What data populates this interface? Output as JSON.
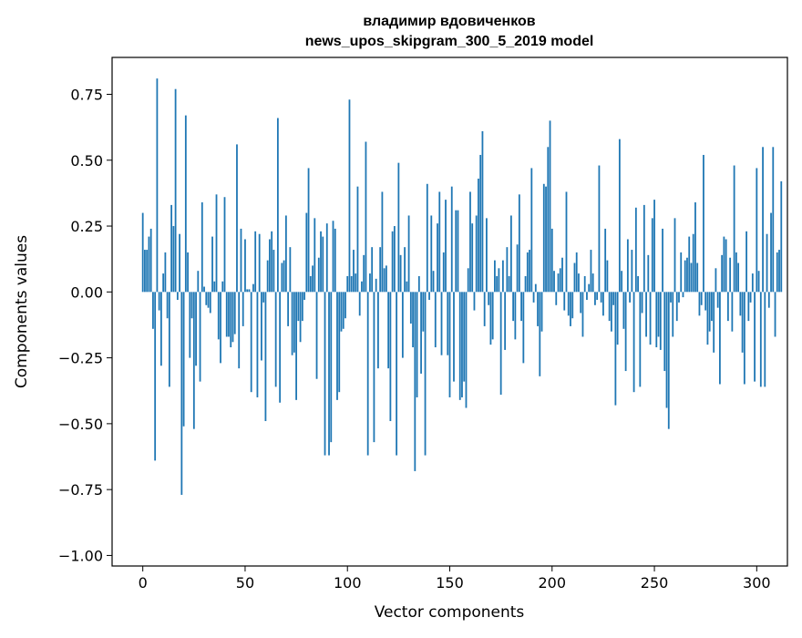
{
  "chart_data": {
    "type": "bar",
    "title": "владимир вдовиченков",
    "subtitle": "news_upos_skipgram_300_5_2019 model",
    "xlabel": "Vector components",
    "ylabel": "Components values",
    "xlim": [
      -15,
      315
    ],
    "ylim": [
      -1.04,
      0.89
    ],
    "xticks": [
      0,
      50,
      100,
      150,
      200,
      250,
      300
    ],
    "yticks": [
      -1.0,
      -0.75,
      -0.5,
      -0.25,
      0.0,
      0.25,
      0.5,
      0.75
    ],
    "ytick_labels": [
      "−1.00",
      "−0.75",
      "−0.50",
      "−0.25",
      "0.00",
      "0.25",
      "0.50",
      "0.75"
    ],
    "bar_color": "#1f77b4",
    "grid": false,
    "values": [
      0.3,
      0.16,
      0.16,
      0.21,
      0.24,
      -0.14,
      -0.64,
      0.81,
      -0.07,
      -0.28,
      0.07,
      0.15,
      -0.1,
      -0.36,
      0.33,
      0.25,
      0.77,
      -0.03,
      0.22,
      -0.77,
      -0.51,
      0.67,
      0.15,
      -0.25,
      -0.1,
      -0.52,
      -0.28,
      0.08,
      -0.34,
      0.34,
      0.02,
      -0.05,
      -0.06,
      -0.08,
      0.21,
      0.04,
      0.37,
      -0.18,
      -0.27,
      0.04,
      0.36,
      -0.17,
      -0.17,
      -0.21,
      -0.19,
      -0.16,
      0.56,
      -0.29,
      0.24,
      -0.13,
      0.2,
      0.01,
      0.01,
      -0.38,
      0.03,
      0.23,
      -0.4,
      0.22,
      -0.26,
      -0.04,
      -0.49,
      0.12,
      0.2,
      0.23,
      0.16,
      -0.36,
      0.66,
      -0.42,
      0.11,
      0.12,
      0.29,
      -0.13,
      0.17,
      -0.24,
      -0.23,
      -0.41,
      -0.11,
      -0.19,
      -0.11,
      -0.03,
      0.3,
      0.47,
      0.06,
      0.1,
      0.28,
      -0.33,
      0.13,
      0.23,
      0.21,
      -0.62,
      0.26,
      -0.62,
      -0.57,
      0.27,
      0.24,
      -0.41,
      -0.38,
      -0.15,
      -0.14,
      -0.1,
      0.06,
      0.73,
      0.06,
      0.16,
      0.07,
      0.4,
      -0.09,
      0.04,
      0.14,
      0.57,
      -0.62,
      0.07,
      0.17,
      -0.57,
      0.05,
      -0.29,
      0.17,
      0.38,
      0.09,
      0.1,
      -0.29,
      -0.49,
      0.23,
      0.25,
      -0.62,
      0.49,
      0.14,
      -0.25,
      0.17,
      0.04,
      0.29,
      -0.12,
      -0.21,
      -0.68,
      -0.4,
      0.06,
      -0.31,
      -0.15,
      -0.62,
      0.41,
      -0.03,
      0.29,
      0.08,
      -0.21,
      0.26,
      0.38,
      -0.24,
      0.15,
      0.35,
      -0.24,
      -0.4,
      0.4,
      -0.34,
      0.31,
      0.31,
      -0.41,
      -0.4,
      -0.34,
      -0.44,
      0.09,
      0.38,
      0.26,
      -0.07,
      0.29,
      0.43,
      0.52,
      0.61,
      -0.13,
      0.28,
      -0.05,
      -0.2,
      -0.18,
      0.12,
      0.06,
      0.09,
      -0.39,
      0.12,
      -0.22,
      0.17,
      0.06,
      0.29,
      -0.11,
      -0.18,
      0.18,
      0.37,
      -0.11,
      -0.27,
      0.06,
      0.15,
      0.16,
      0.47,
      -0.04,
      0.03,
      -0.13,
      -0.32,
      -0.15,
      0.41,
      0.4,
      0.55,
      0.65,
      0.24,
      0.08,
      -0.05,
      0.07,
      0.09,
      0.13,
      -0.07,
      0.38,
      -0.09,
      -0.13,
      -0.1,
      0.11,
      0.15,
      0.07,
      -0.08,
      -0.17,
      0.06,
      -0.03,
      0.03,
      0.16,
      0.07,
      -0.05,
      -0.03,
      0.48,
      -0.04,
      -0.09,
      0.24,
      0.12,
      -0.11,
      -0.15,
      -0.05,
      -0.43,
      -0.2,
      0.58,
      0.08,
      -0.14,
      -0.3,
      0.2,
      -0.04,
      0.16,
      -0.38,
      0.32,
      0.06,
      -0.36,
      -0.08,
      0.33,
      -0.17,
      0.14,
      -0.2,
      0.28,
      0.35,
      -0.21,
      -0.17,
      -0.22,
      0.24,
      -0.3,
      -0.44,
      -0.52,
      -0.04,
      -0.17,
      0.28,
      -0.11,
      -0.04,
      0.15,
      -0.02,
      0.12,
      0.13,
      0.21,
      0.11,
      0.22,
      0.34,
      0.11,
      -0.09,
      -0.05,
      0.52,
      -0.07,
      -0.2,
      -0.15,
      -0.11,
      -0.23,
      0.09,
      -0.06,
      -0.35,
      0.14,
      0.21,
      0.2,
      -0.11,
      0.13,
      -0.15,
      0.48,
      0.15,
      0.11,
      -0.09,
      -0.23,
      -0.35,
      0.23,
      -0.11,
      -0.04,
      0.07,
      -0.34,
      0.47,
      0.08,
      -0.36,
      0.55,
      -0.36,
      0.22,
      -0.06,
      0.3,
      0.55,
      -0.17,
      0.15,
      0.16,
      0.42
    ]
  }
}
